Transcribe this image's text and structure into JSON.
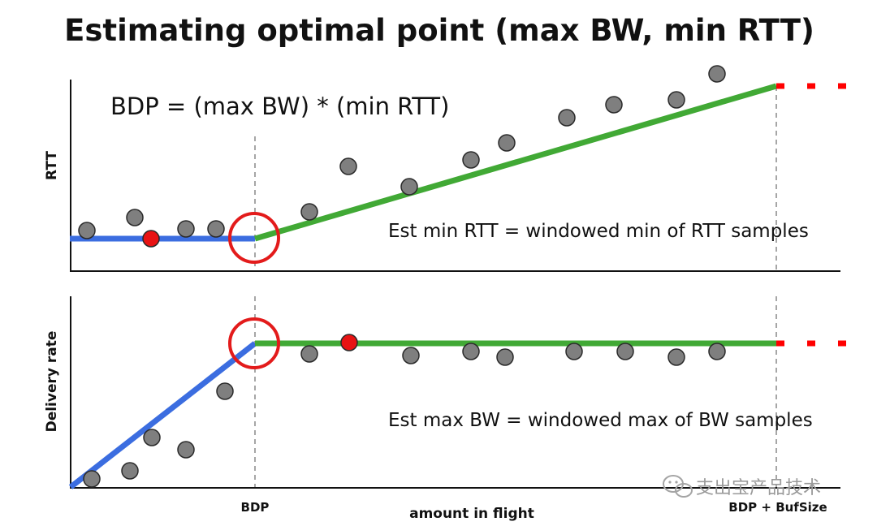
{
  "title": "Estimating optimal point (max BW, min RTT)",
  "formula": "BDP = (max BW) * (min RTT)",
  "top_panel": {
    "ylabel": "RTT",
    "annotation": "Est min RTT = windowed min of RTT samples"
  },
  "bottom_panel": {
    "ylabel": "Delivery rate",
    "annotation": "Est max BW = windowed max of BW samples"
  },
  "xaxis": {
    "label": "amount in flight",
    "tick_bdp": "BDP",
    "tick_bdp_buf": "BDP + BufSize"
  },
  "watermark": "支出宝产品技术",
  "colors": {
    "blue_line": "#3b6de0",
    "green_line": "#41a935",
    "red_dot": "#e81313",
    "gray_dot": "#7f7f7f",
    "circle": "#e31b1b",
    "dotted": "#ff0000"
  }
}
